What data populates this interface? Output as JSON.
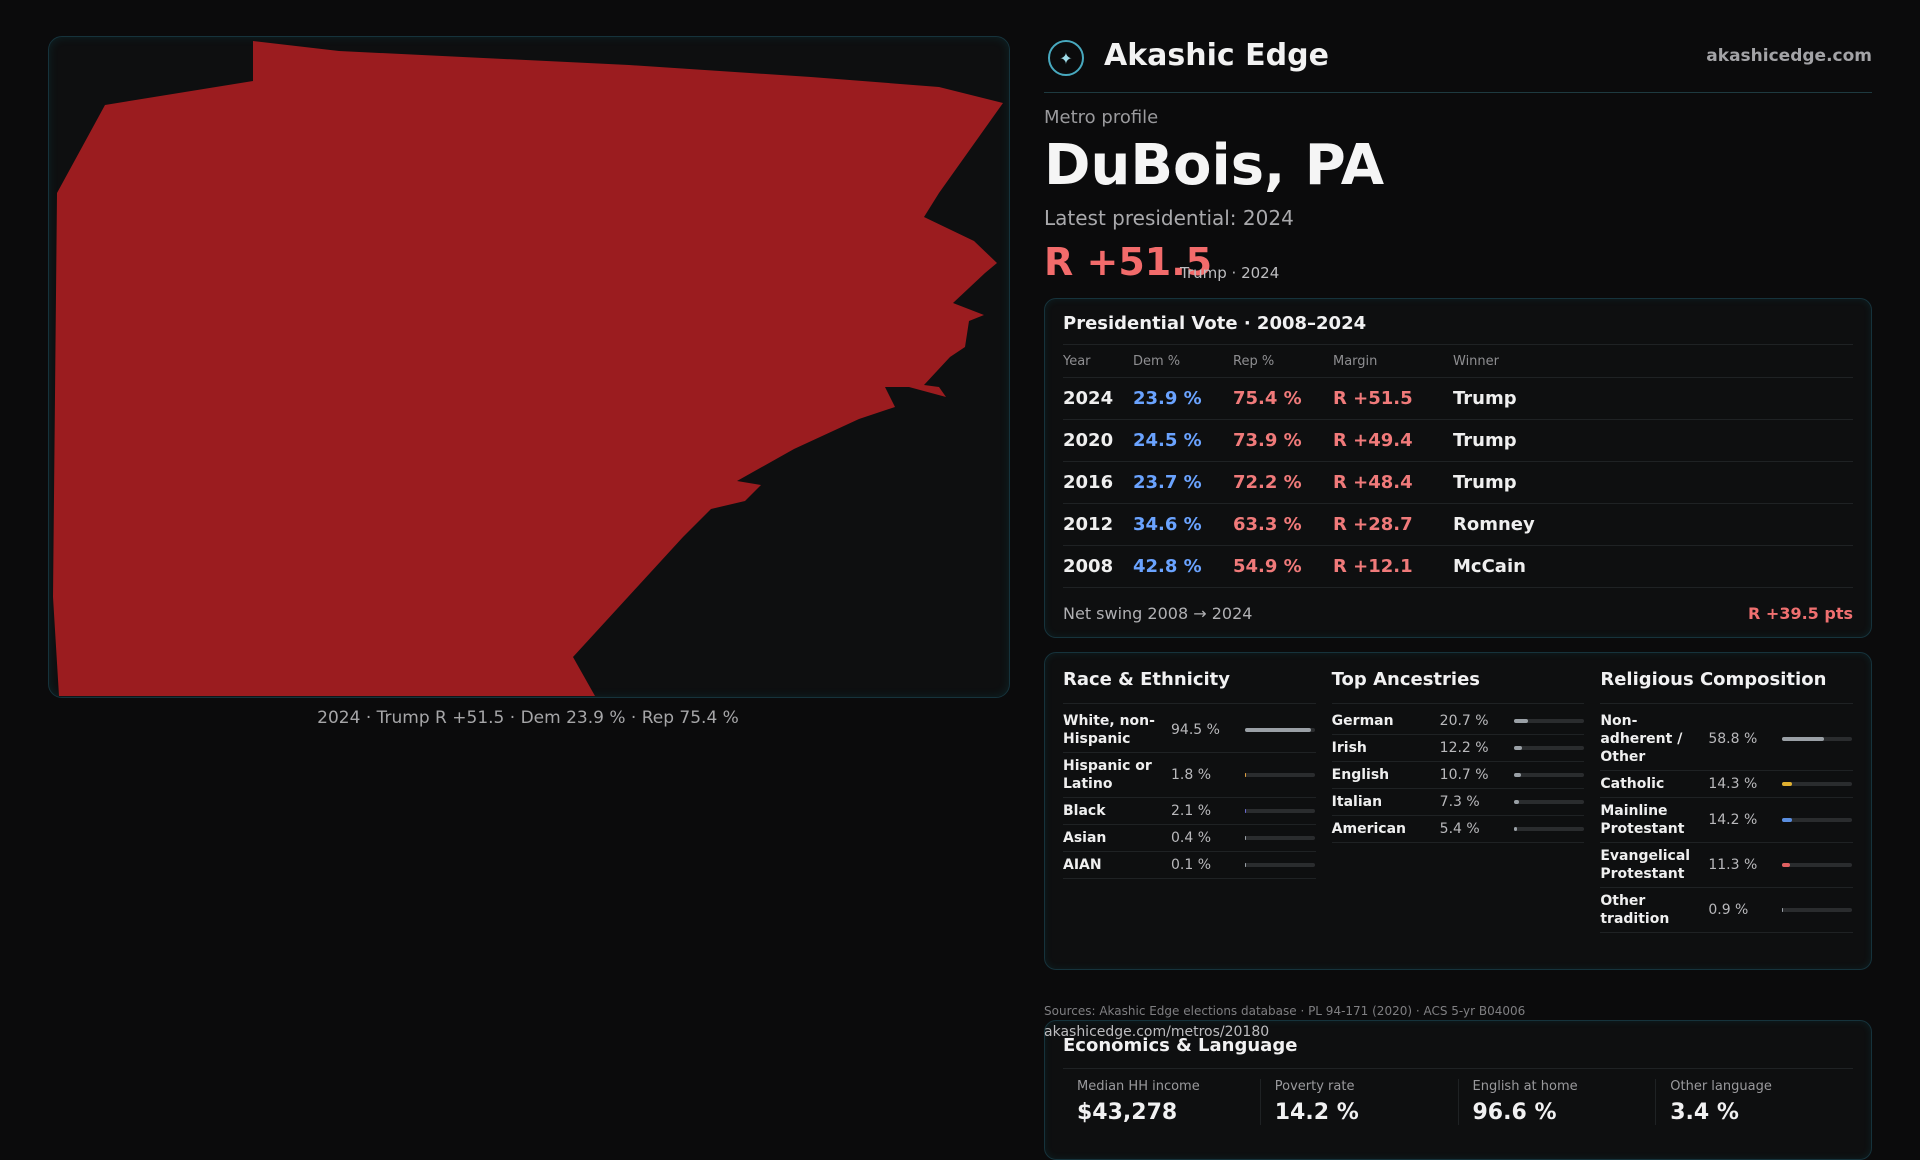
{
  "map": {
    "caption": "2024 · Trump R +51.5 · Dem 23.9 % · Rep 75.4 %",
    "fill_color": "#9b1c1f"
  },
  "brand": {
    "name": "Akashic Edge",
    "url": "akashicedge.com",
    "logo_icon": "compass-logo-icon"
  },
  "profile": {
    "label": "Metro profile",
    "title": "DuBois, PA",
    "latest_label": "Latest presidential: 2024",
    "margin": "R +51.5",
    "margin_sub": "Trump · 2024"
  },
  "vote": {
    "title": "Presidential Vote · 2008–2024",
    "headers": [
      "Year",
      "Dem %",
      "Rep %",
      "Margin",
      "Winner"
    ],
    "rows": [
      {
        "year": "2024",
        "dem": "23.9 %",
        "rep": "75.4 %",
        "margin": "R +51.5",
        "winner": "Trump"
      },
      {
        "year": "2020",
        "dem": "24.5 %",
        "rep": "73.9 %",
        "margin": "R +49.4",
        "winner": "Trump"
      },
      {
        "year": "2016",
        "dem": "23.7 %",
        "rep": "72.2 %",
        "margin": "R +48.4",
        "winner": "Trump"
      },
      {
        "year": "2012",
        "dem": "34.6 %",
        "rep": "63.3 %",
        "margin": "R +28.7",
        "winner": "Romney"
      },
      {
        "year": "2008",
        "dem": "42.8 %",
        "rep": "54.9 %",
        "margin": "R +12.1",
        "winner": "McCain"
      }
    ],
    "swing_label": "Net swing 2008 → 2024",
    "swing_value": "R +39.5 pts"
  },
  "race": {
    "title": "Race & Ethnicity",
    "rows": [
      {
        "label": "White, non-Hispanic",
        "value": "94.5 %",
        "pct": 94.5,
        "color": "#9aa0a6"
      },
      {
        "label": "Hispanic or Latino",
        "value": "1.8 %",
        "pct": 1.8,
        "color": "#e0a040"
      },
      {
        "label": "Black",
        "value": "2.1 %",
        "pct": 2.1,
        "color": "#6a6ad0"
      },
      {
        "label": "Asian",
        "value": "0.4 %",
        "pct": 0.4,
        "color": "#9aa0a6"
      },
      {
        "label": "AIAN",
        "value": "0.1 %",
        "pct": 0.1,
        "color": "#9aa0a6"
      }
    ]
  },
  "ancestry": {
    "title": "Top Ancestries",
    "rows": [
      {
        "label": "German",
        "value": "20.7 %",
        "pct": 20.7,
        "color": "#9aa0a6"
      },
      {
        "label": "Irish",
        "value": "12.2 %",
        "pct": 12.2,
        "color": "#9aa0a6"
      },
      {
        "label": "English",
        "value": "10.7 %",
        "pct": 10.7,
        "color": "#9aa0a6"
      },
      {
        "label": "Italian",
        "value": "7.3 %",
        "pct": 7.3,
        "color": "#9aa0a6"
      },
      {
        "label": "American",
        "value": "5.4 %",
        "pct": 5.4,
        "color": "#9aa0a6"
      }
    ]
  },
  "religion": {
    "title": "Religious Composition",
    "rows": [
      {
        "label": "Non-adherent / Other",
        "value": "58.8 %",
        "pct": 58.8,
        "color": "#9aa0a6"
      },
      {
        "label": "Catholic",
        "value": "14.3 %",
        "pct": 14.3,
        "color": "#e0b030"
      },
      {
        "label": "Mainline Protestant",
        "value": "14.2 %",
        "pct": 14.2,
        "color": "#5a8ee0"
      },
      {
        "label": "Evangelical Protestant",
        "value": "11.3 %",
        "pct": 11.3,
        "color": "#e06060"
      },
      {
        "label": "Other tradition",
        "value": "0.9 %",
        "pct": 0.9,
        "color": "#9aa0a6"
      }
    ]
  },
  "econ": {
    "title": "Economics & Language",
    "stats": [
      {
        "label": "Median HH income",
        "value": "$43,278"
      },
      {
        "label": "Poverty rate",
        "value": "14.2 %"
      },
      {
        "label": "English at home",
        "value": "96.6 %"
      },
      {
        "label": "Other language",
        "value": "3.4 %"
      }
    ]
  },
  "footer": {
    "sources": "Sources: Akashic Edge elections database · PL 94-171 (2020) · ACS 5-yr B04006",
    "permalink": "akashicedge.com/metros/20180"
  }
}
